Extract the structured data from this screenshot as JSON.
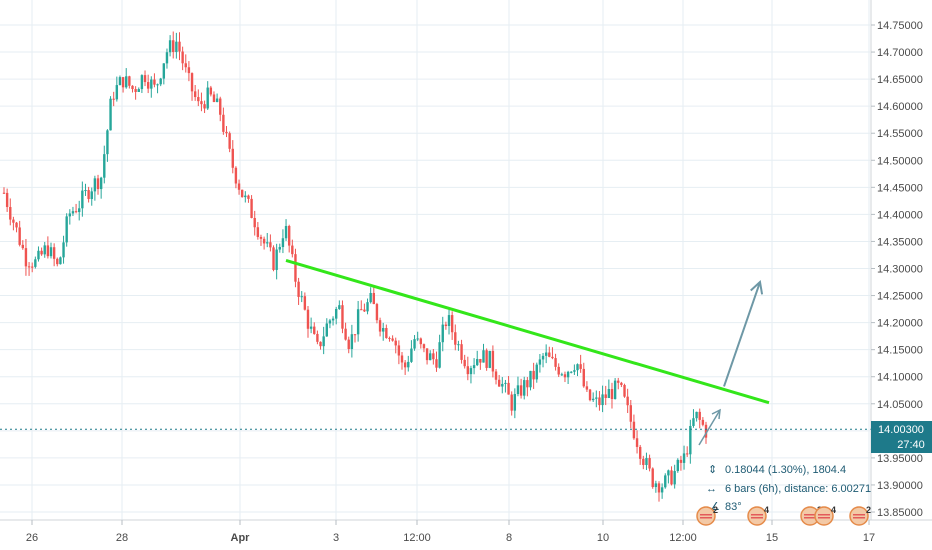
{
  "chart_data": {
    "type": "candlestick",
    "instrument_price_axis": {
      "ticks": [
        "14.75000",
        "14.70000",
        "14.65000",
        "14.60000",
        "14.55000",
        "14.50000",
        "14.45000",
        "14.40000",
        "14.35000",
        "14.30000",
        "14.25000",
        "14.20000",
        "14.15000",
        "14.10000",
        "14.05000",
        "14.00000",
        "13.95000",
        "13.90000",
        "13.85000"
      ],
      "ylim": [
        13.83,
        14.79
      ]
    },
    "time_axis": {
      "ticks": [
        "26",
        "28",
        "Apr",
        "3",
        "12:00",
        "8",
        "10",
        "12:00",
        "15",
        "17"
      ]
    },
    "current_price": {
      "label": "14.00300",
      "value": 14.003,
      "countdown": "27:40"
    },
    "trendline": {
      "from": {
        "x": 0.0,
        "y": 14.315
      },
      "to": {
        "x": 1.0,
        "y": 14.052
      }
    },
    "projection_arrow": {
      "from": {
        "x": 0.0,
        "y": 14.082
      },
      "to": {
        "x": 1.0,
        "y": 14.275
      }
    },
    "measurement": {
      "price_change": "0.18044 (1.30%), 1804.4",
      "bars_distance": "6 bars (6h), distance: 6.00271",
      "angle": "83°"
    },
    "events": [
      {
        "label": "2"
      },
      {
        "label": "4"
      },
      {
        "label": "3"
      },
      {
        "label": "4"
      },
      {
        "label": "2"
      }
    ],
    "candles_anchor_series": [
      14.44,
      14.38,
      14.32,
      14.31,
      14.34,
      14.3,
      14.4,
      14.42,
      14.45,
      14.47,
      14.62,
      14.65,
      14.63,
      14.66,
      14.63,
      14.7,
      14.72,
      14.65,
      14.6,
      14.62,
      14.59,
      14.5,
      14.44,
      14.4,
      14.35,
      14.31,
      14.38,
      14.28,
      14.21,
      14.15,
      14.2,
      14.23,
      14.16,
      14.22,
      14.24,
      14.19,
      14.18,
      14.11,
      14.17,
      14.14,
      14.13,
      14.21,
      14.16,
      14.12,
      14.14,
      14.13,
      14.09,
      14.05,
      14.08,
      14.1,
      14.14,
      14.12,
      14.11,
      14.13,
      14.06,
      14.05,
      14.07,
      14.08,
      14.02,
      13.96,
      13.91,
      13.9,
      13.92,
      13.95,
      14.03,
      14.0
    ]
  },
  "colors": {
    "up": "#26a69a",
    "down": "#ef5350",
    "trendline": "#33e61a",
    "arrow": "#6e98a6",
    "current_price_bg": "#1e7a8a",
    "grid": "#e6eef3"
  }
}
